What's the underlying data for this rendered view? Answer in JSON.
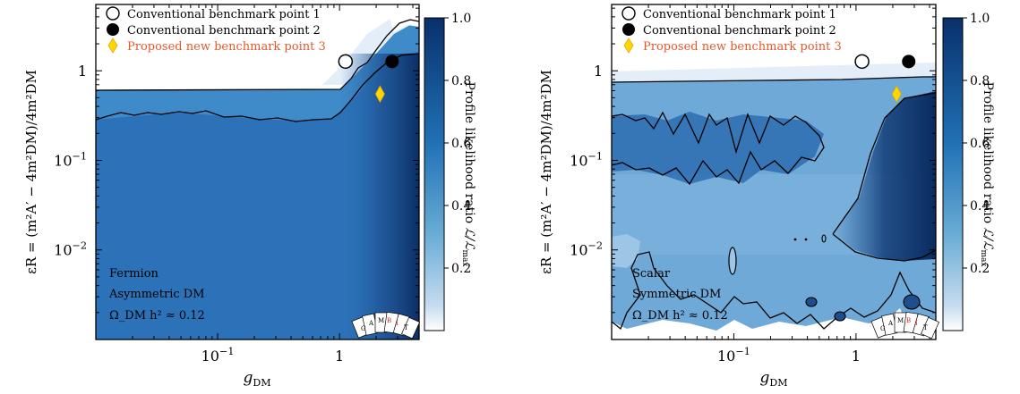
{
  "chart_data": [
    {
      "type": "heatmap",
      "xscale": "log",
      "yscale": "log",
      "xlim": [
        0.01,
        4.5
      ],
      "ylim": [
        0.001,
        5.5
      ],
      "xlabel": "g_DM",
      "ylabel": "ε_R = (m²_A' − 4m²_DM)/4m²_DM",
      "xticks": [
        {
          "value": 0.1,
          "label": "10^-1"
        },
        {
          "value": 1,
          "label": "1"
        }
      ],
      "yticks": [
        {
          "value": 0.01,
          "label": "10^-2"
        },
        {
          "value": 0.1,
          "label": "10^-1"
        },
        {
          "value": 1,
          "label": "1"
        }
      ],
      "colorbar": {
        "label": "Profile likelihood ratio L/L_max",
        "ticks": [
          0.2,
          0.4,
          0.6,
          0.8,
          1.0
        ],
        "tick_labels": [
          "0.2",
          "0.4",
          "0.6",
          "0.8",
          "1.0"
        ],
        "range": [
          0,
          1
        ],
        "colors": [
          "#ffffff",
          "#c6dbef",
          "#6baed6",
          "#2171b5",
          "#08306b"
        ]
      },
      "legend": {
        "position": "top-left",
        "entries": [
          {
            "label": "Conventional benchmark point 1",
            "marker": "open-circle",
            "color": "#000000"
          },
          {
            "label": "Conventional benchmark point 2",
            "marker": "filled-circle",
            "color": "#000000"
          },
          {
            "label": "Proposed new benchmark point 3",
            "marker": "diamond",
            "color": "#ffd700",
            "text_color": "#e8572a"
          }
        ]
      },
      "benchmarks": [
        {
          "name": "Conventional benchmark point 1",
          "x": 1.12,
          "y": 1.27
        },
        {
          "name": "Conventional benchmark point 2",
          "x": 2.7,
          "y": 1.27
        },
        {
          "name": "Proposed new benchmark point 3",
          "x": 2.15,
          "y": 0.55
        }
      ],
      "annotation": [
        "Fermion",
        "Asymmetric DM",
        "Ω_DM h² ≈ 0.12"
      ],
      "regions": {
        "outer_contour_y": 0.72,
        "inner_contour_y": 0.35,
        "rise_start_x": 1.0
      }
    },
    {
      "type": "heatmap",
      "xscale": "log",
      "yscale": "log",
      "xlim": [
        0.01,
        4.5
      ],
      "ylim": [
        0.001,
        5.5
      ],
      "xlabel": "g_DM",
      "ylabel": "ε_R = (m²_A' − 4m²_DM)/4m²_DM",
      "xticks": [
        {
          "value": 0.1,
          "label": "10^-1"
        },
        {
          "value": 1,
          "label": "1"
        }
      ],
      "yticks": [
        {
          "value": 0.01,
          "label": "10^-2"
        },
        {
          "value": 0.1,
          "label": "10^-1"
        },
        {
          "value": 1,
          "label": "1"
        }
      ],
      "colorbar": {
        "label": "Profile likelihood ratio L/L_max",
        "ticks": [
          0.2,
          0.4,
          0.6,
          0.8,
          1.0
        ],
        "tick_labels": [
          "0.2",
          "0.4",
          "0.6",
          "0.8",
          "1.0"
        ],
        "range": [
          0,
          1
        ],
        "colors": [
          "#ffffff",
          "#c6dbef",
          "#6baed6",
          "#2171b5",
          "#08306b"
        ]
      },
      "legend": {
        "position": "top-left",
        "entries": [
          {
            "label": "Conventional benchmark point 1",
            "marker": "open-circle",
            "color": "#000000"
          },
          {
            "label": "Conventional benchmark point 2",
            "marker": "filled-circle",
            "color": "#000000"
          },
          {
            "label": "Proposed new benchmark point 3",
            "marker": "diamond",
            "color": "#ffd700",
            "text_color": "#e8572a"
          }
        ]
      },
      "benchmarks": [
        {
          "name": "Conventional benchmark point 1",
          "x": 1.12,
          "y": 1.27
        },
        {
          "name": "Conventional benchmark point 2",
          "x": 2.7,
          "y": 1.27
        },
        {
          "name": "Proposed new benchmark point 3",
          "x": 2.15,
          "y": 0.55
        }
      ],
      "annotation": [
        "Scalar",
        "Symmetric DM",
        "Ω_DM h² ≈ 0.12"
      ],
      "regions": {
        "outer_contour_y": 1.05,
        "inner_band_y": [
          0.04,
          0.35
        ],
        "lower_edge_y": 0.006
      }
    }
  ],
  "ui": {
    "legend_items": [
      "Conventional benchmark point 1",
      "Conventional benchmark point 2",
      "Proposed new benchmark point 3"
    ],
    "left_annotation": [
      "Fermion",
      "Asymmetric DM",
      "Ω_DM h² ≈ 0.12"
    ],
    "right_annotation": [
      "Scalar",
      "Symmetric DM",
      "Ω_DM h² ≈ 0.12"
    ],
    "logo_letters": [
      "G",
      "A",
      "M",
      "B",
      "I",
      "T"
    ],
    "colors": {
      "proposed_text": "#e8572a",
      "proposed_marker": "#ffd700",
      "contour": "#000000"
    }
  }
}
